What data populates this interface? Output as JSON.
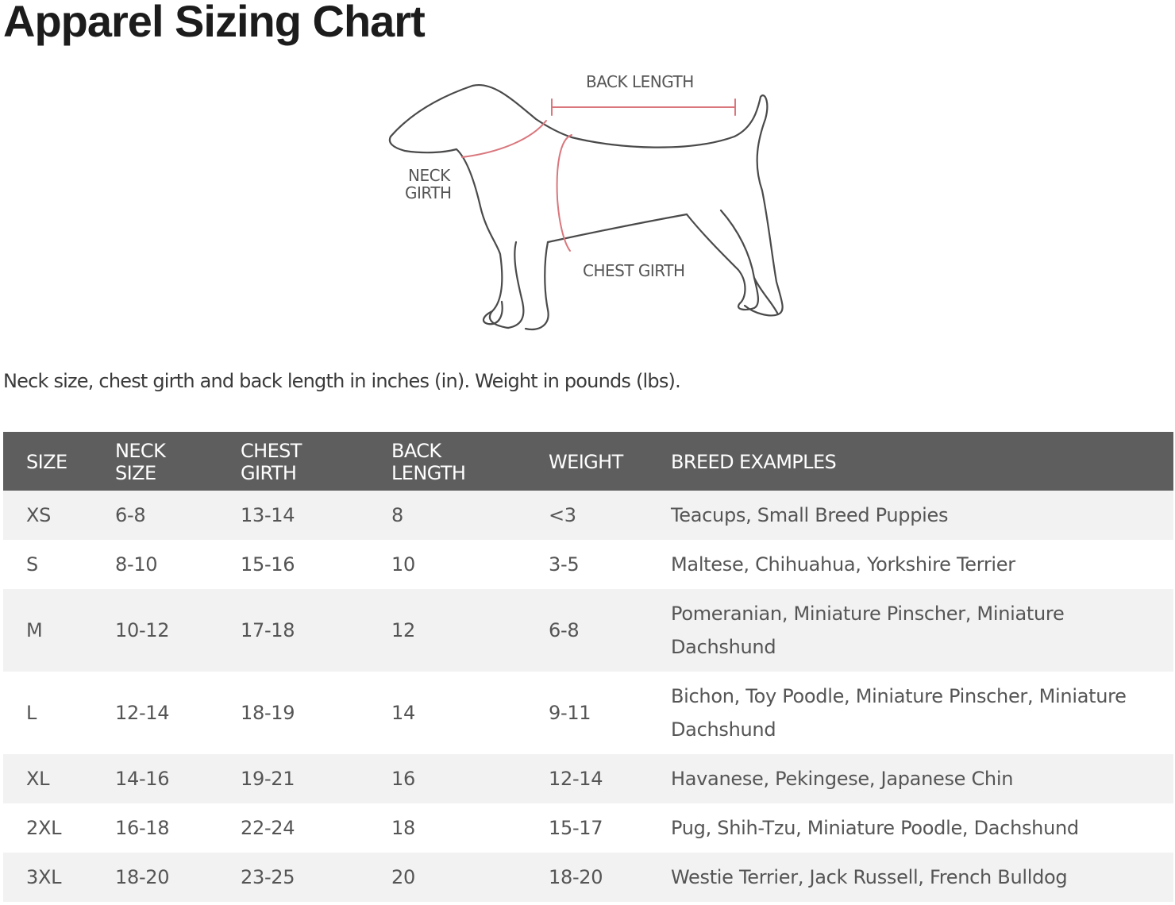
{
  "title": "Apparel Sizing Chart",
  "diagram": {
    "labels": {
      "back_length": "BACK LENGTH",
      "neck_girth_line1": "NECK",
      "neck_girth_line2": "GIRTH",
      "chest_girth": "CHEST GIRTH"
    },
    "colors": {
      "outline": "#4a4a4a",
      "measure": "#d9777d"
    }
  },
  "note": "Neck size, chest girth and back length in inches (in). Weight in pounds (lbs).",
  "table": {
    "headers": [
      {
        "line1": "SIZE",
        "line2": ""
      },
      {
        "line1": "NECK",
        "line2": "SIZE"
      },
      {
        "line1": "CHEST",
        "line2": "GIRTH"
      },
      {
        "line1": "BACK",
        "line2": "LENGTH"
      },
      {
        "line1": "WEIGHT",
        "line2": ""
      },
      {
        "line1": "BREED EXAMPLES",
        "line2": ""
      }
    ],
    "rows": [
      {
        "size": "XS",
        "neck": "6-8",
        "chest": "13-14",
        "back": "8",
        "weight": "<3",
        "breeds": "Teacups, Small Breed Puppies"
      },
      {
        "size": "S",
        "neck": "8-10",
        "chest": "15-16",
        "back": "10",
        "weight": "3-5",
        "breeds": "Maltese, Chihuahua, Yorkshire Terrier"
      },
      {
        "size": "M",
        "neck": "10-12",
        "chest": "17-18",
        "back": "12",
        "weight": "6-8",
        "breeds": "Pomeranian, Miniature Pinscher, Miniature Dachshund"
      },
      {
        "size": "L",
        "neck": "12-14",
        "chest": "18-19",
        "back": "14",
        "weight": "9-11",
        "breeds": "Bichon, Toy Poodle, Miniature Pinscher, Miniature Dachshund"
      },
      {
        "size": "XL",
        "neck": "14-16",
        "chest": "19-21",
        "back": "16",
        "weight": "12-14",
        "breeds": "Havanese, Pekingese, Japanese Chin"
      },
      {
        "size": "2XL",
        "neck": "16-18",
        "chest": "22-24",
        "back": "18",
        "weight": "15-17",
        "breeds": "Pug, Shih-Tzu, Miniature Poodle, Dachshund"
      },
      {
        "size": "3XL",
        "neck": "18-20",
        "chest": "23-25",
        "back": "20",
        "weight": "18-20",
        "breeds": "Westie Terrier, Jack Russell, French Bulldog"
      }
    ],
    "colors": {
      "header_bg": "#5e5e5e",
      "header_text": "#ffffff",
      "stripe": "#f2f2f2"
    }
  }
}
